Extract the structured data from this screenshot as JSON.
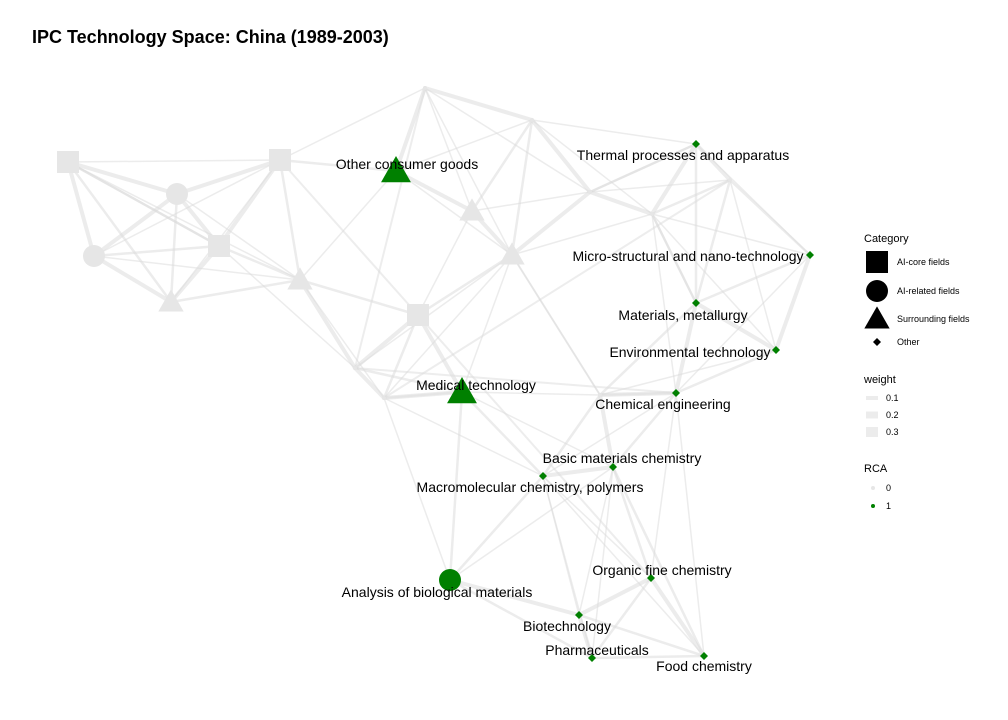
{
  "chart_data": {
    "type": "network",
    "title": "IPC Technology Space: China (1989-2003)",
    "colors": {
      "highlight": "#008000",
      "background_node": "#e6e6e6",
      "edge": "#dcdcdc"
    },
    "highlighted_nodes": [
      {
        "label": "Other consumer goods",
        "category": "Surrounding fields",
        "rca": 1
      },
      {
        "label": "Thermal processes and apparatus",
        "category": "Other",
        "rca": 1
      },
      {
        "label": "Micro-structural and nano-technology",
        "category": "Other",
        "rca": 1
      },
      {
        "label": "Materials, metallurgy",
        "category": "Other",
        "rca": 1
      },
      {
        "label": "Environmental technology",
        "category": "Other",
        "rca": 1
      },
      {
        "label": "Medical technology",
        "category": "Surrounding fields",
        "rca": 1
      },
      {
        "label": "Chemical engineering",
        "category": "Other",
        "rca": 1
      },
      {
        "label": "Basic materials chemistry",
        "category": "Other",
        "rca": 1
      },
      {
        "label": "Macromolecular chemistry, polymers",
        "category": "Other",
        "rca": 1
      },
      {
        "label": "Analysis of biological materials",
        "category": "AI-related fields",
        "rca": 1
      },
      {
        "label": "Organic fine chemistry",
        "category": "Other",
        "rca": 1
      },
      {
        "label": "Biotechnology",
        "category": "Other",
        "rca": 1
      },
      {
        "label": "Pharmaceuticals",
        "category": "Other",
        "rca": 1
      },
      {
        "label": "Food chemistry",
        "category": "Other",
        "rca": 1
      }
    ],
    "legend": {
      "placement": "right",
      "category": {
        "title": "Category",
        "entries": [
          "AI-core fields",
          "AI-related fields",
          "Surrounding fields",
          "Other"
        ]
      },
      "weight": {
        "title": "weight",
        "entries": [
          "0.1",
          "0.2",
          "0.3"
        ]
      },
      "rca": {
        "title": "RCA",
        "entries": [
          "0",
          "1"
        ]
      }
    }
  }
}
